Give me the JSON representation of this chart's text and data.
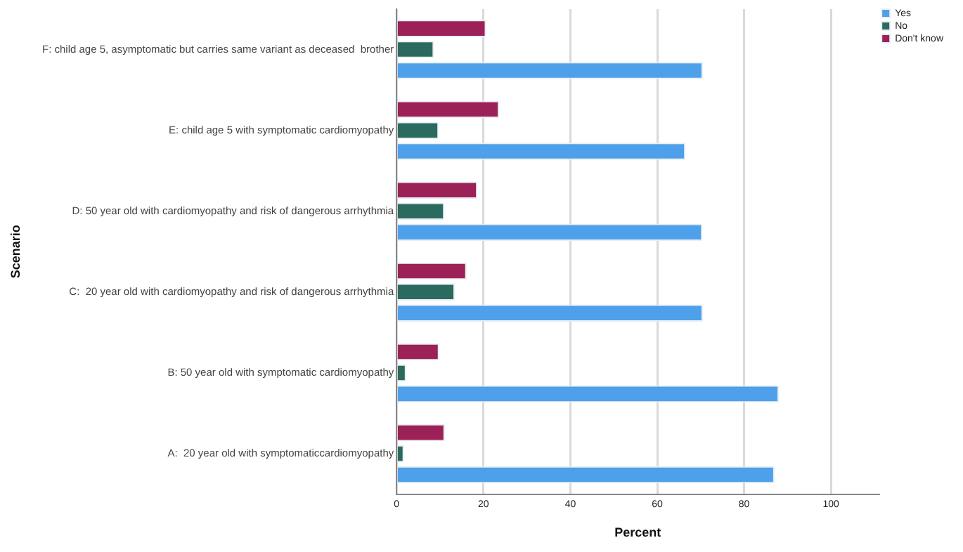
{
  "chart_data": {
    "type": "bar",
    "orientation": "horizontal",
    "xlabel": "Percent",
    "ylabel": "Scenario",
    "categories": [
      "F: child age 5, asymptomatic but carries same variant as deceased  brother",
      "E: child age 5 with symptomatic cardiomyopathy",
      "D: 50 year old with cardiomyopathy and risk of dangerous arrhythmia",
      "C:  20 year old with cardiomyopathy and risk of dangerous arrhythmia",
      "B: 50 year old with symptomatic cardiomyopathy",
      "A:  20 year old with symptomaticcardiomyopathy"
    ],
    "series": [
      {
        "name": "Yes",
        "color": "#4ea0ea",
        "values": [
          70.5,
          66.5,
          70.4,
          70.5,
          88.0,
          87.0
        ]
      },
      {
        "name": "No",
        "color": "#2b6a5e",
        "values": [
          8.6,
          9.7,
          11.0,
          13.4,
          2.2,
          1.7
        ]
      },
      {
        "name": "Don't know",
        "color": "#9c2157",
        "values": [
          20.6,
          23.6,
          18.6,
          16.1,
          9.8,
          11.1
        ]
      }
    ],
    "xlim": [
      0,
      111
    ],
    "xticks": [
      0,
      20,
      40,
      60,
      80,
      100
    ],
    "grid": "x",
    "legend": "top right"
  }
}
